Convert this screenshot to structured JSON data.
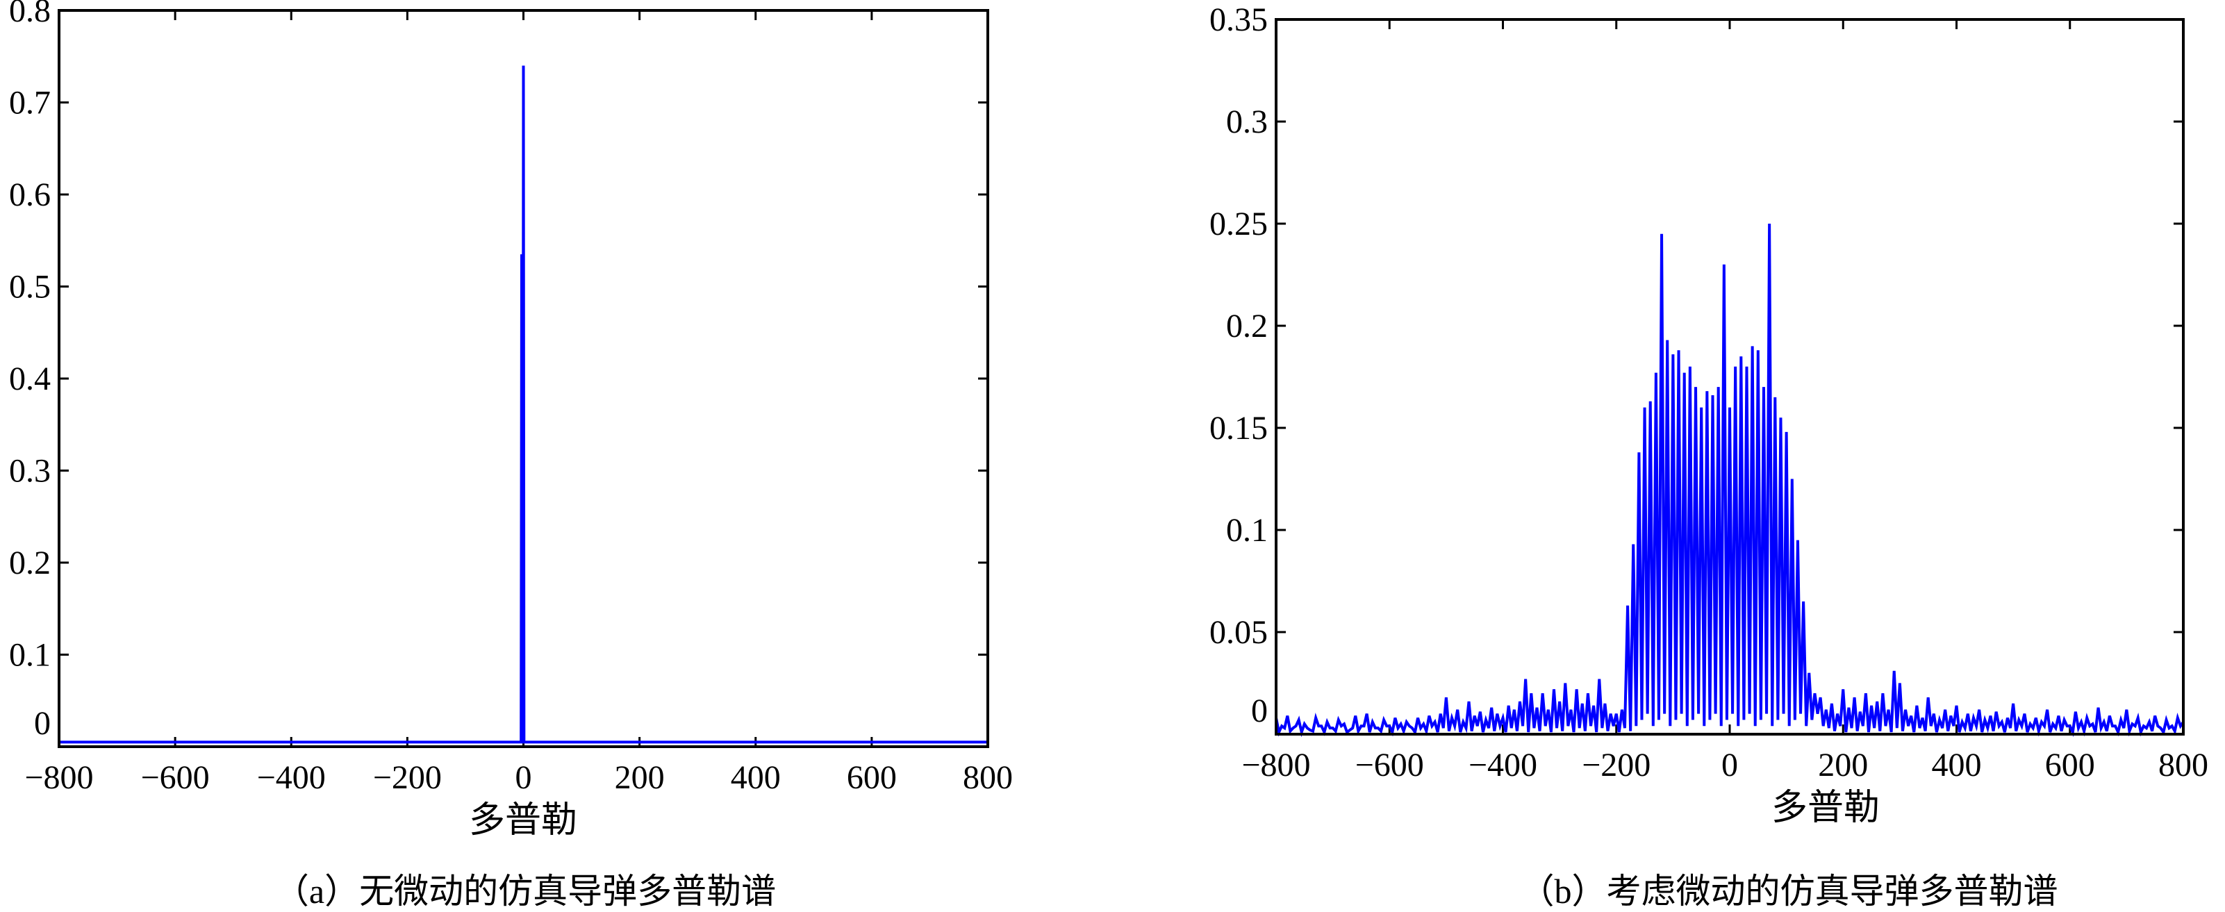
{
  "chart_data": [
    {
      "type": "line",
      "xlabel": "多普勒",
      "ylabel": "",
      "caption": "（a）无微动的仿真导弹多普勒谱",
      "xlim": [
        -800,
        800
      ],
      "ylim": [
        0,
        0.8
      ],
      "xticks": [
        -800,
        -600,
        -400,
        -200,
        0,
        200,
        400,
        600,
        800
      ],
      "xtick_labels": [
        "−800",
        "−600",
        "−400",
        "−200",
        "0",
        "200",
        "400",
        "600",
        "800"
      ],
      "yticks": [
        0,
        0.1,
        0.2,
        0.3,
        0.4,
        0.5,
        0.6,
        0.7,
        0.8
      ],
      "ytick_labels": [
        "0",
        "0.1",
        "0.2",
        "0.3",
        "0.4",
        "0.5",
        "0.6",
        "0.7",
        "0.8"
      ],
      "grid": false,
      "line_color": "#0000ff",
      "x": [
        -800,
        -4,
        -3,
        -2,
        -1,
        0,
        1,
        800
      ],
      "y": [
        0.005,
        0.005,
        0.535,
        0.005,
        0.005,
        0.74,
        0.005,
        0.005
      ]
    },
    {
      "type": "line",
      "xlabel": "多普勒",
      "ylabel": "",
      "caption": "（b）考虑微动的仿真导弹多普勒谱",
      "xlim": [
        -800,
        800
      ],
      "ylim": [
        0,
        0.35
      ],
      "xticks": [
        -800,
        -600,
        -400,
        -200,
        0,
        200,
        400,
        600,
        800
      ],
      "xtick_labels": [
        "−800",
        "−600",
        "−400",
        "−200",
        "0",
        "200",
        "400",
        "600",
        "800"
      ],
      "yticks": [
        0,
        0.05,
        0.1,
        0.15,
        0.2,
        0.25,
        0.3,
        0.35
      ],
      "ytick_labels": [
        "0",
        "0.05",
        "0.1",
        "0.15",
        "0.2",
        "0.25",
        "0.3",
        "0.35"
      ],
      "grid": false,
      "line_color": "#0000ff",
      "x_start": -800,
      "x_step": 10,
      "y": [
        0.008,
        0.004,
        0.009,
        0.003,
        0.007,
        0.005,
        0.002,
        0.008,
        0.004,
        0.006,
        0.003,
        0.007,
        0.005,
        0.002,
        0.009,
        0.004,
        0.01,
        0.006,
        0.003,
        0.007,
        0.004,
        0.008,
        0.005,
        0.006,
        0.003,
        0.008,
        0.005,
        0.009,
        0.006,
        0.01,
        0.018,
        0.008,
        0.012,
        0.006,
        0.016,
        0.009,
        0.011,
        0.007,
        0.013,
        0.01,
        0.008,
        0.014,
        0.012,
        0.016,
        0.027,
        0.02,
        0.013,
        0.02,
        0.012,
        0.022,
        0.016,
        0.025,
        0.012,
        0.022,
        0.015,
        0.02,
        0.014,
        0.027,
        0.015,
        0.01,
        0.01,
        0.012,
        0.063,
        0.093,
        0.138,
        0.16,
        0.163,
        0.177,
        0.245,
        0.193,
        0.186,
        0.188,
        0.177,
        0.18,
        0.17,
        0.16,
        0.168,
        0.166,
        0.17,
        0.23,
        0.16,
        0.18,
        0.185,
        0.18,
        0.19,
        0.188,
        0.17,
        0.25,
        0.165,
        0.155,
        0.148,
        0.125,
        0.095,
        0.065,
        0.03,
        0.02,
        0.018,
        0.012,
        0.015,
        0.01,
        0.022,
        0.013,
        0.018,
        0.011,
        0.02,
        0.014,
        0.016,
        0.02,
        0.012,
        0.031,
        0.025,
        0.012,
        0.009,
        0.014,
        0.008,
        0.018,
        0.01,
        0.007,
        0.012,
        0.009,
        0.014,
        0.006,
        0.01,
        0.008,
        0.012,
        0.007,
        0.009,
        0.011,
        0.006,
        0.008,
        0.015,
        0.007,
        0.01,
        0.005,
        0.008,
        0.006,
        0.012,
        0.005,
        0.009,
        0.007,
        0.004,
        0.011,
        0.006,
        0.008,
        0.005,
        0.013,
        0.006,
        0.009,
        0.004,
        0.007,
        0.012,
        0.005,
        0.008,
        0.004,
        0.006,
        0.009,
        0.003,
        0.007,
        0.004,
        0.008,
        0.006
      ]
    }
  ]
}
